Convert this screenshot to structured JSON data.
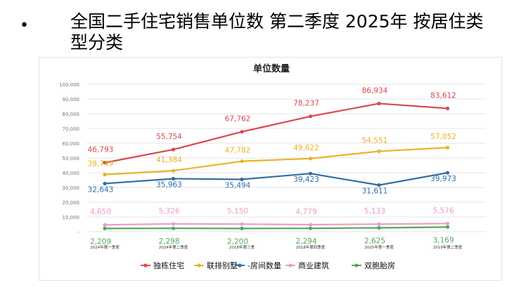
{
  "slide": {
    "bullet": "•",
    "title": "全国二手住宅销售单位数 第二季度 2025年 按居住类型分类"
  },
  "chart_data": {
    "type": "line",
    "title": "单位数量",
    "ylim": [
      0,
      100000
    ],
    "y_ticks": [
      "-",
      "10,000",
      "20,000",
      "30,000",
      "40,000",
      "50,000",
      "60,000",
      "70,000",
      "80,000",
      "90,000",
      "100,000"
    ],
    "x_ticks": [
      "2024年第一季度",
      "2024年第二季度",
      "2018年第三季",
      "2018年第四季度",
      "2025年第一季度",
      "2019年第二季度"
    ],
    "series": [
      {
        "name": "独栋住宅",
        "color": "#d9474f",
        "values": [
          46793,
          55754,
          67762,
          78237,
          86934,
          83612
        ],
        "labels": [
          "46,793",
          "55,754",
          "67,762",
          "78,237",
          "86,934",
          "83,612"
        ]
      },
      {
        "name": "联排别墅",
        "color": "#e8b327",
        "values": [
          38749,
          41384,
          47782,
          49622,
          54551,
          57052
        ],
        "labels": [
          "38,749",
          "41,384",
          "47,782",
          "49,622",
          "54,551",
          "57,052"
        ]
      },
      {
        "name": "-房间数量",
        "color": "#2f6ea6",
        "values": [
          32643,
          35963,
          35494,
          39423,
          31611,
          39973
        ],
        "labels": [
          "32,643",
          "35,963",
          "35,494",
          "39,423",
          "31,611",
          "39,973"
        ]
      },
      {
        "name": "商业建筑",
        "color": "#ee9bc9",
        "values": [
          4650,
          5326,
          5150,
          4779,
          5133,
          5576
        ],
        "labels": [
          "4,650",
          "5,326",
          "5,150",
          "4,779",
          "5,133",
          "5,576"
        ]
      },
      {
        "name": "双胞胎房",
        "color": "#4faa5d",
        "values": [
          2209,
          2298,
          2200,
          2294,
          2625,
          3169
        ],
        "labels": [
          "2,209",
          "2,298",
          "2,200",
          "2,294",
          "2,625",
          "3,169"
        ]
      }
    ]
  }
}
